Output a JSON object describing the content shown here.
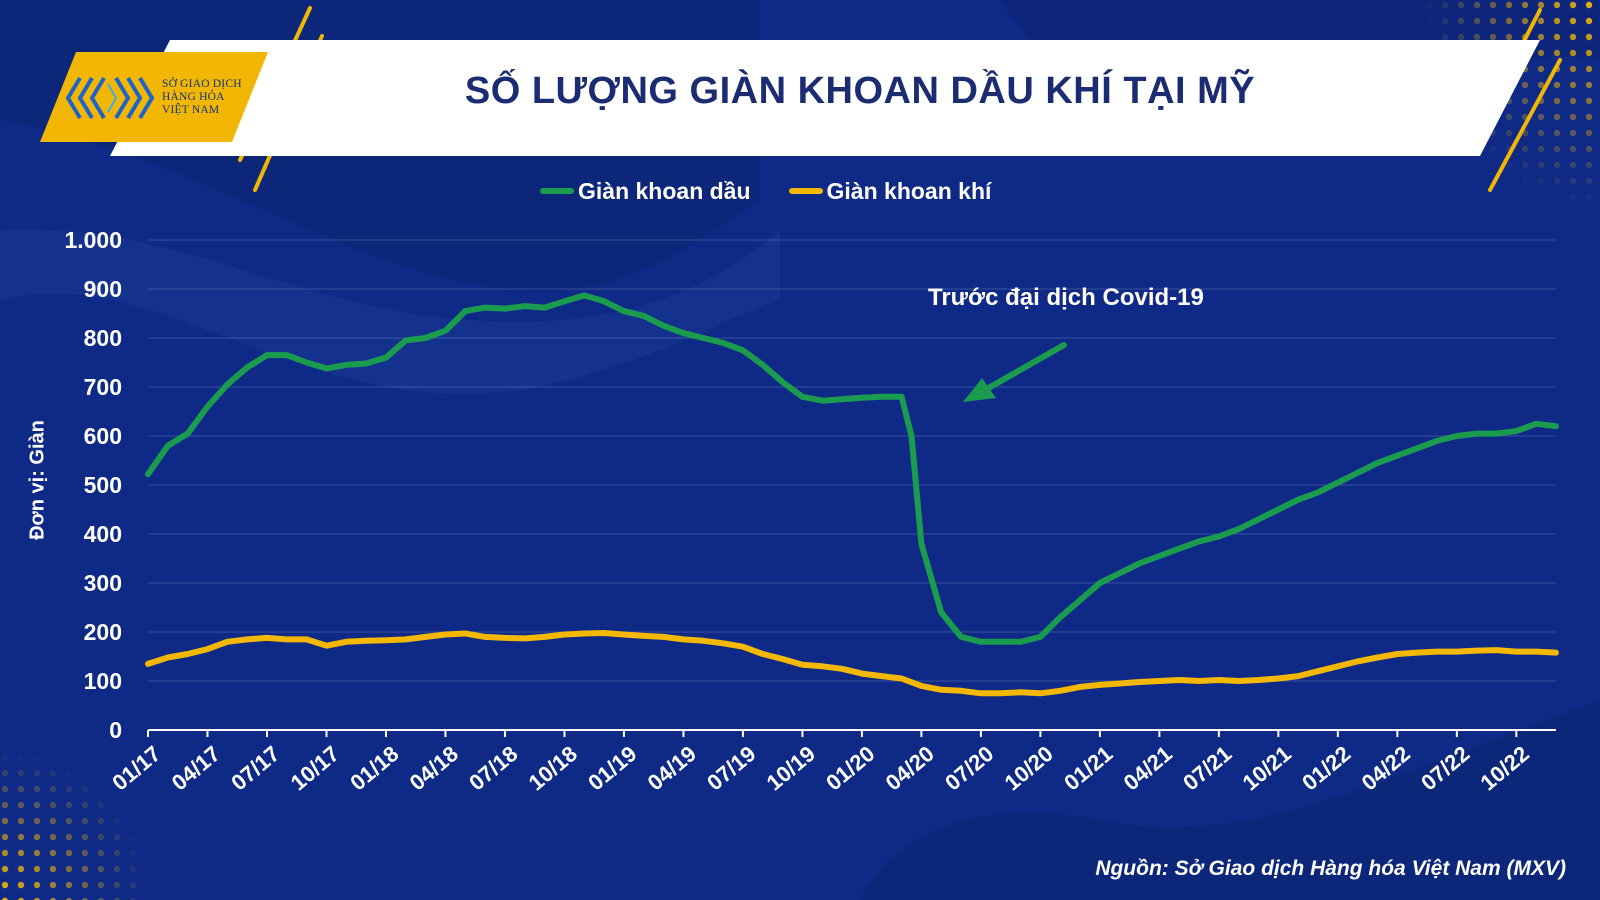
{
  "title": "SỐ LƯỢNG GIÀN KHOAN DẦU KHÍ TẠI MỸ",
  "logo": {
    "line1": "SỞ GIAO DỊCH",
    "line2": "HÀNG HÓA",
    "line3": "VIỆT NAM"
  },
  "annotation": "Trước đại dịch Covid-19",
  "source": "Nguồn: Sở Giao dịch Hàng hóa Việt Nam (MXV)",
  "colors": {
    "background": "#0f2a86",
    "oil": "#1a9b4e",
    "gas": "#f5b800",
    "accent": "#f2b705"
  },
  "chart_data": {
    "type": "line",
    "title": "SỐ LƯỢNG GIÀN KHOAN DẦU KHÍ TẠI MỸ",
    "ylabel": "Đơn vị: Giàn",
    "xlabel": "",
    "ylim": [
      0,
      1000
    ],
    "yticks": [
      0,
      100,
      200,
      300,
      400,
      500,
      600,
      700,
      800,
      900,
      1000
    ],
    "ytick_labels": [
      "0",
      "100",
      "200",
      "300",
      "400",
      "500",
      "600",
      "700",
      "800",
      "900",
      "1.000"
    ],
    "xtick_labels": [
      "01/17",
      "04/17",
      "07/17",
      "10/17",
      "01/18",
      "04/18",
      "07/18",
      "10/18",
      "01/19",
      "04/19",
      "07/19",
      "10/19",
      "01/20",
      "04/20",
      "07/20",
      "10/20",
      "01/21",
      "04/21",
      "07/21",
      "10/21",
      "01/22",
      "04/22",
      "07/22",
      "10/22"
    ],
    "x_start": "01/17",
    "x_end": "12/22",
    "grid": true,
    "legend_position": "top-center",
    "series": [
      {
        "name": "Giàn khoan dầu",
        "color": "#1a9b4e",
        "x": [
          "01/17",
          "02/17",
          "03/17",
          "04/17",
          "05/17",
          "06/17",
          "07/17",
          "08/17",
          "09/17",
          "10/17",
          "11/17",
          "12/17",
          "01/18",
          "02/18",
          "03/18",
          "04/18",
          "05/18",
          "06/18",
          "07/18",
          "08/18",
          "09/18",
          "10/18",
          "11/18",
          "12/18",
          "01/19",
          "02/19",
          "03/19",
          "04/19",
          "05/19",
          "06/19",
          "07/19",
          "08/19",
          "09/19",
          "10/19",
          "11/19",
          "12/19",
          "01/20",
          "02/20",
          "03/20",
          "03/20",
          "04/20",
          "05/20",
          "06/20",
          "07/20",
          "08/20",
          "09/20",
          "10/20",
          "11/20",
          "12/20",
          "01/21",
          "02/21",
          "03/21",
          "04/21",
          "05/21",
          "06/21",
          "07/21",
          "08/21",
          "09/21",
          "10/21",
          "11/21",
          "12/21",
          "01/22",
          "02/22",
          "03/22",
          "04/22",
          "05/22",
          "06/22",
          "07/22",
          "08/22",
          "09/22",
          "10/22",
          "11/22",
          "12/22"
        ],
        "values": [
          522,
          580,
          605,
          660,
          705,
          740,
          765,
          765,
          750,
          738,
          745,
          748,
          760,
          795,
          800,
          815,
          855,
          862,
          860,
          865,
          862,
          875,
          887,
          875,
          855,
          845,
          825,
          810,
          800,
          790,
          775,
          745,
          710,
          680,
          672,
          675,
          678,
          680,
          680,
          600,
          380,
          240,
          190,
          180,
          180,
          180,
          190,
          230,
          265,
          300,
          320,
          340,
          355,
          370,
          385,
          395,
          410,
          430,
          450,
          470,
          485,
          505,
          525,
          545,
          560,
          575,
          590,
          600,
          605,
          605,
          610,
          625,
          620
        ]
      },
      {
        "name": "Giàn khoan khí",
        "color": "#f5b800",
        "x": [
          "01/17",
          "02/17",
          "03/17",
          "04/17",
          "05/17",
          "06/17",
          "07/17",
          "08/17",
          "09/17",
          "10/17",
          "11/17",
          "12/17",
          "01/18",
          "02/18",
          "03/18",
          "04/18",
          "05/18",
          "06/18",
          "07/18",
          "08/18",
          "09/18",
          "10/18",
          "11/18",
          "12/18",
          "01/19",
          "02/19",
          "03/19",
          "04/19",
          "05/19",
          "06/19",
          "07/19",
          "08/19",
          "09/19",
          "10/19",
          "11/19",
          "12/19",
          "01/20",
          "02/20",
          "03/20",
          "04/20",
          "05/20",
          "06/20",
          "07/20",
          "08/20",
          "09/20",
          "10/20",
          "11/20",
          "12/20",
          "01/21",
          "02/21",
          "03/21",
          "04/21",
          "05/21",
          "06/21",
          "07/21",
          "08/21",
          "09/21",
          "10/21",
          "11/21",
          "12/21",
          "01/22",
          "02/22",
          "03/22",
          "04/22",
          "05/22",
          "06/22",
          "07/22",
          "08/22",
          "09/22",
          "10/22",
          "11/22",
          "12/22"
        ],
        "values": [
          135,
          148,
          155,
          165,
          180,
          185,
          188,
          185,
          185,
          172,
          180,
          182,
          183,
          185,
          190,
          195,
          197,
          190,
          188,
          187,
          190,
          195,
          197,
          198,
          195,
          192,
          190,
          185,
          182,
          177,
          170,
          155,
          145,
          133,
          130,
          125,
          115,
          110,
          105,
          90,
          82,
          80,
          75,
          75,
          77,
          75,
          80,
          88,
          92,
          95,
          98,
          100,
          102,
          100,
          102,
          100,
          102,
          105,
          110,
          120,
          130,
          140,
          148,
          155,
          158,
          160,
          160,
          162,
          163,
          160,
          160,
          158
        ]
      }
    ]
  }
}
